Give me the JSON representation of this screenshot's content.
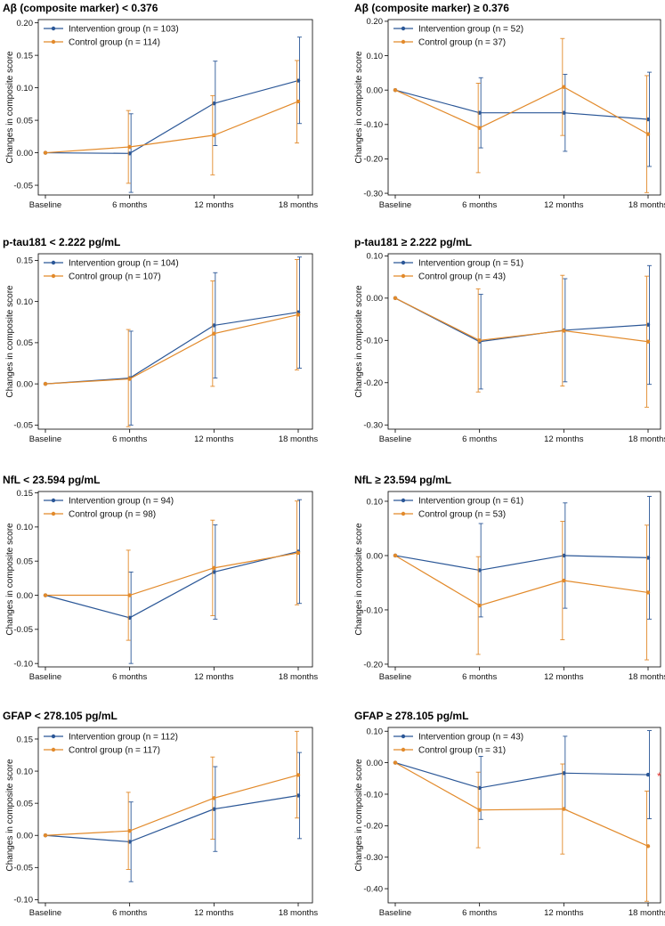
{
  "chart_data": [
    {
      "type": "line",
      "title": "Aβ (composite marker) < 0.376",
      "xlabel": "",
      "ylabel": "Changes in composite score",
      "categories": [
        "Baseline",
        "6 months",
        "12 months",
        "18 months"
      ],
      "ylim": [
        -0.065,
        0.205
      ],
      "yticks": [
        -0.05,
        0.0,
        0.05,
        0.1,
        0.15,
        0.2
      ],
      "ytick_labels": [
        "-0.05",
        "0.00",
        "0.05",
        "0.10",
        "0.15",
        "0.20"
      ],
      "legend_position": "top-left",
      "series": [
        {
          "name": "Intervention group",
          "n_label": "(n = 103)",
          "color": "#2b5797",
          "values": [
            0.0,
            -0.001,
            0.076,
            0.111
          ],
          "lower": [
            0.0,
            -0.061,
            0.011,
            0.045
          ],
          "upper": [
            0.0,
            0.06,
            0.141,
            0.178
          ]
        },
        {
          "name": "Control group",
          "n_label": "(n = 114)",
          "color": "#e28a2b",
          "values": [
            0.0,
            0.009,
            0.027,
            0.079
          ],
          "lower": [
            0.0,
            -0.047,
            -0.034,
            0.015
          ],
          "upper": [
            0.0,
            0.065,
            0.088,
            0.142
          ]
        }
      ]
    },
    {
      "type": "line",
      "title": "Aβ (composite marker) ≥ 0.376",
      "xlabel": "",
      "ylabel": "Changes in composite score",
      "categories": [
        "Baseline",
        "6 months",
        "12 months",
        "18 months"
      ],
      "ylim": [
        -0.305,
        0.205
      ],
      "yticks": [
        -0.3,
        -0.2,
        -0.1,
        0.0,
        0.1,
        0.2
      ],
      "ytick_labels": [
        "-0.30",
        "-0.20",
        "-0.10",
        "0.00",
        "0.10",
        "0.20"
      ],
      "legend_position": "top-left",
      "series": [
        {
          "name": "Intervention group",
          "n_label": "(n = 52)",
          "color": "#2b5797",
          "values": [
            0.0,
            -0.066,
            -0.066,
            -0.085
          ],
          "lower": [
            0.0,
            -0.168,
            -0.178,
            -0.222
          ],
          "upper": [
            0.0,
            0.036,
            0.046,
            0.052
          ]
        },
        {
          "name": "Control group",
          "n_label": "(n = 37)",
          "color": "#e28a2b",
          "values": [
            0.0,
            -0.11,
            0.009,
            -0.128
          ],
          "lower": [
            0.0,
            -0.24,
            -0.132,
            -0.298
          ],
          "upper": [
            0.0,
            0.02,
            0.15,
            0.042
          ]
        }
      ]
    },
    {
      "type": "line",
      "title": "p-tau181 < 2.222 pg/mL",
      "xlabel": "",
      "ylabel": "Changes in composite score",
      "categories": [
        "Baseline",
        "6 months",
        "12 months",
        "18 months"
      ],
      "ylim": [
        -0.055,
        0.158
      ],
      "yticks": [
        -0.05,
        0.0,
        0.05,
        0.1,
        0.15
      ],
      "ytick_labels": [
        "-0.05",
        "0.00",
        "0.05",
        "0.10",
        "0.15"
      ],
      "legend_position": "top-left",
      "series": [
        {
          "name": "Intervention group",
          "n_label": "(n = 104)",
          "color": "#2b5797",
          "values": [
            0.0,
            0.007,
            0.071,
            0.087
          ],
          "lower": [
            0.0,
            -0.05,
            0.007,
            0.019
          ],
          "upper": [
            0.0,
            0.064,
            0.135,
            0.154
          ]
        },
        {
          "name": "Control group",
          "n_label": "(n = 107)",
          "color": "#e28a2b",
          "values": [
            0.0,
            0.006,
            0.061,
            0.084
          ],
          "lower": [
            0.0,
            -0.052,
            -0.003,
            0.017
          ],
          "upper": [
            0.0,
            0.066,
            0.125,
            0.151
          ]
        }
      ]
    },
    {
      "type": "line",
      "title": "p-tau181 ≥ 2.222 pg/mL",
      "xlabel": "",
      "ylabel": "Changes in composite score",
      "categories": [
        "Baseline",
        "6 months",
        "12 months",
        "18 months"
      ],
      "ylim": [
        -0.31,
        0.105
      ],
      "yticks": [
        -0.3,
        -0.2,
        -0.1,
        0.0,
        0.1
      ],
      "ytick_labels": [
        "-0.30",
        "-0.20",
        "-0.10",
        "0.00",
        "0.10"
      ],
      "legend_position": "top-left",
      "series": [
        {
          "name": "Intervention group",
          "n_label": "(n = 51)",
          "color": "#2b5797",
          "values": [
            0.0,
            -0.103,
            -0.076,
            -0.063
          ],
          "lower": [
            0.0,
            -0.215,
            -0.198,
            -0.204
          ],
          "upper": [
            0.0,
            0.009,
            0.046,
            0.077
          ]
        },
        {
          "name": "Control group",
          "n_label": "(n = 43)",
          "color": "#e28a2b",
          "values": [
            0.0,
            -0.1,
            -0.077,
            -0.103
          ],
          "lower": [
            0.0,
            -0.222,
            -0.208,
            -0.258
          ],
          "upper": [
            0.0,
            0.022,
            0.054,
            0.052
          ]
        }
      ]
    },
    {
      "type": "line",
      "title": "NfL < 23.594 pg/mL",
      "xlabel": "",
      "ylabel": "Changes in composite score",
      "categories": [
        "Baseline",
        "6 months",
        "12 months",
        "18 months"
      ],
      "ylim": [
        -0.105,
        0.152
      ],
      "yticks": [
        -0.1,
        -0.05,
        0.0,
        0.05,
        0.1,
        0.15
      ],
      "ytick_labels": [
        "-0.10",
        "-0.05",
        "0.00",
        "0.05",
        "0.10",
        "0.15"
      ],
      "legend_position": "top-left",
      "series": [
        {
          "name": "Intervention group",
          "n_label": "(n = 94)",
          "color": "#2b5797",
          "values": [
            0.0,
            -0.033,
            0.034,
            0.064
          ],
          "lower": [
            0.0,
            -0.1,
            -0.035,
            -0.012
          ],
          "upper": [
            0.0,
            0.034,
            0.103,
            0.14
          ]
        },
        {
          "name": "Control group",
          "n_label": "(n = 98)",
          "color": "#e28a2b",
          "values": [
            0.0,
            0.0,
            0.04,
            0.062
          ],
          "lower": [
            0.0,
            -0.066,
            -0.03,
            -0.014
          ],
          "upper": [
            0.0,
            0.066,
            0.11,
            0.138
          ]
        }
      ]
    },
    {
      "type": "line",
      "title": "NfL ≥ 23.594 pg/mL",
      "xlabel": "",
      "ylabel": "Changes in composite score",
      "categories": [
        "Baseline",
        "6 months",
        "12 months",
        "18 months"
      ],
      "ylim": [
        -0.205,
        0.118
      ],
      "yticks": [
        -0.2,
        -0.1,
        0.0,
        0.1
      ],
      "ytick_labels": [
        "-0.20",
        "-0.10",
        "0.00",
        "0.10"
      ],
      "legend_position": "top-left",
      "series": [
        {
          "name": "Intervention group",
          "n_label": "(n = 61)",
          "color": "#2b5797",
          "values": [
            0.0,
            -0.027,
            0.0,
            -0.004
          ],
          "lower": [
            0.0,
            -0.113,
            -0.097,
            -0.117
          ],
          "upper": [
            0.0,
            0.059,
            0.097,
            0.109
          ]
        },
        {
          "name": "Control group",
          "n_label": "(n = 53)",
          "color": "#e28a2b",
          "values": [
            0.0,
            -0.092,
            -0.046,
            -0.068
          ],
          "lower": [
            0.0,
            -0.182,
            -0.155,
            -0.192
          ],
          "upper": [
            0.0,
            -0.002,
            0.063,
            0.056
          ]
        }
      ]
    },
    {
      "type": "line",
      "title": "GFAP < 278.105 pg/mL",
      "xlabel": "",
      "ylabel": "Changes in composite score",
      "categories": [
        "Baseline",
        "6 months",
        "12 months",
        "18 months"
      ],
      "ylim": [
        -0.105,
        0.168
      ],
      "yticks": [
        -0.1,
        -0.05,
        0.0,
        0.05,
        0.1,
        0.15
      ],
      "ytick_labels": [
        "-0.10",
        "-0.05",
        "0.00",
        "0.05",
        "0.10",
        "0.15"
      ],
      "legend_position": "top-left",
      "series": [
        {
          "name": "Intervention group",
          "n_label": "(n = 112)",
          "color": "#2b5797",
          "values": [
            0.0,
            -0.01,
            0.041,
            0.062
          ],
          "lower": [
            0.0,
            -0.072,
            -0.025,
            -0.005
          ],
          "upper": [
            0.0,
            0.052,
            0.107,
            0.129
          ]
        },
        {
          "name": "Control group",
          "n_label": "(n = 117)",
          "color": "#e28a2b",
          "values": [
            0.0,
            0.007,
            0.058,
            0.094
          ],
          "lower": [
            0.0,
            -0.053,
            -0.006,
            0.027
          ],
          "upper": [
            0.0,
            0.067,
            0.122,
            0.162
          ]
        }
      ]
    },
    {
      "type": "line",
      "title": "GFAP ≥ 278.105 pg/mL",
      "xlabel": "",
      "ylabel": "Changes in composite score",
      "categories": [
        "Baseline",
        "6 months",
        "12 months",
        "18 months"
      ],
      "ylim": [
        -0.445,
        0.112
      ],
      "yticks": [
        -0.4,
        -0.3,
        -0.2,
        -0.1,
        0.0,
        0.1
      ],
      "ytick_labels": [
        "-0.40",
        "-0.30",
        "-0.20",
        "-0.10",
        "0.00",
        "0.10"
      ],
      "legend_position": "top-left",
      "annotation": "*",
      "annotation_color": "#e53935",
      "series": [
        {
          "name": "Intervention group",
          "n_label": "(n = 43)",
          "color": "#2b5797",
          "values": [
            0.0,
            -0.08,
            -0.033,
            -0.038
          ],
          "lower": [
            0.0,
            -0.18,
            -0.15,
            -0.178
          ],
          "upper": [
            0.0,
            0.02,
            0.084,
            0.102
          ]
        },
        {
          "name": "Control group",
          "n_label": "(n = 31)",
          "color": "#e28a2b",
          "values": [
            0.0,
            -0.15,
            -0.147,
            -0.265
          ],
          "lower": [
            0.0,
            -0.27,
            -0.29,
            -0.44
          ],
          "upper": [
            0.0,
            -0.03,
            -0.004,
            -0.09
          ]
        }
      ]
    }
  ]
}
